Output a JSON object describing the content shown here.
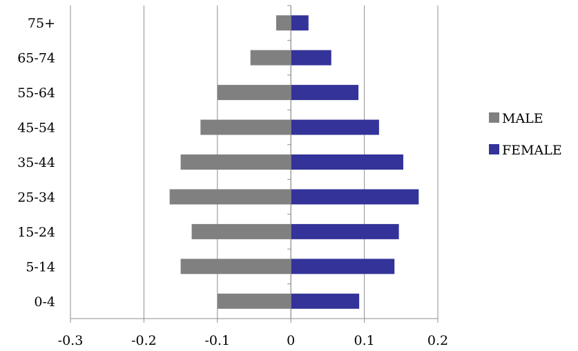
{
  "chart_data": {
    "type": "bar",
    "orientation": "horizontal",
    "stacked": true,
    "title": "",
    "xlabel": "",
    "ylabel": "",
    "categories": [
      "0-4",
      "5-14",
      "15-24",
      "25-34",
      "35-44",
      "45-54",
      "55-64",
      "65-74",
      "75+"
    ],
    "series": [
      {
        "name": "MALE",
        "color": "#808080",
        "values": [
          -0.1,
          -0.15,
          -0.135,
          -0.165,
          -0.15,
          -0.123,
          -0.1,
          -0.055,
          -0.02
        ]
      },
      {
        "name": "FEMALE",
        "color": "#333399",
        "values": [
          0.093,
          0.141,
          0.147,
          0.174,
          0.153,
          0.12,
          0.092,
          0.055,
          0.024
        ]
      }
    ],
    "xlim": [
      -0.3,
      0.2
    ],
    "xticks": [
      -0.3,
      -0.2,
      -0.1,
      0,
      0.1,
      0.2
    ],
    "xtick_labels": [
      "-0.3",
      "-0.2",
      "-0.1",
      "0",
      "0.1",
      "0.2"
    ],
    "grid": "vertical major gridlines",
    "legend": "right"
  }
}
